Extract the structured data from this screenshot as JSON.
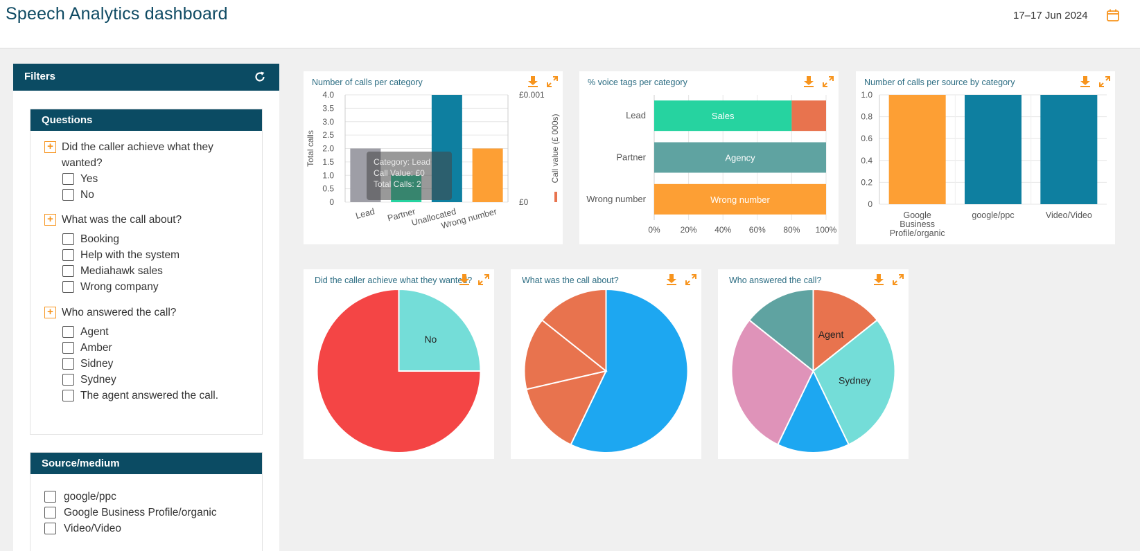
{
  "header": {
    "title": "Speech Analytics dashboard",
    "date_range": "17–17 Jun 2024"
  },
  "sidebar": {
    "title": "Filters",
    "questions_panel": {
      "title": "Questions",
      "questions": [
        {
          "text": "Did the caller achieve what they wanted?",
          "options": [
            "Yes",
            "No"
          ]
        },
        {
          "text": "What was the call about?",
          "options": [
            "Booking",
            "Help with the system",
            "Mediahawk sales",
            "Wrong company"
          ]
        },
        {
          "text": "Who answered the call?",
          "options": [
            "Agent",
            "Amber",
            "Sidney",
            "Sydney",
            "The agent answered the call."
          ]
        }
      ]
    },
    "source_panel": {
      "title": "Source/medium",
      "options": [
        "google/ppc",
        "Google Business Profile/organic",
        "Video/Video"
      ]
    }
  },
  "charts": {
    "calls_per_category": {
      "title": "Number of calls per category"
    },
    "voice_tags": {
      "title": "% voice tags per category"
    },
    "calls_per_source": {
      "title": "Number of calls per source by category"
    },
    "achieved": {
      "title": "Did the caller achieve what they wanted?"
    },
    "call_about": {
      "title": "What was the call about?"
    },
    "who_answered": {
      "title": "Who answered the call?"
    }
  },
  "chart_data": [
    {
      "id": "calls_per_category",
      "type": "bar",
      "title": "Number of calls per category",
      "categories": [
        "Lead",
        "Partner",
        "Unallocated",
        "Wrong number"
      ],
      "values": [
        2,
        1,
        4,
        2
      ],
      "colors": [
        "#9e9ea6",
        "#26d3a0",
        "#0e7fa0",
        "#fd9f34"
      ],
      "ylabel": "Total calls",
      "y2label": "Call value (£ 000s)",
      "ylim": [
        0,
        4
      ],
      "yticks": [
        "0",
        "0.5",
        "1.0",
        "1.5",
        "2.0",
        "2.5",
        "3.0",
        "3.5",
        "4.0"
      ],
      "y2ticks": [
        "£0.001",
        "£0"
      ],
      "tooltip": {
        "lines": [
          "Category: Lead",
          "Call Value: £0",
          "Total Calls: 2"
        ]
      }
    },
    {
      "id": "voice_tags",
      "type": "bar",
      "orientation": "horizontal-stacked",
      "title": "% voice tags per category",
      "categories": [
        "Lead",
        "Partner",
        "Wrong number"
      ],
      "series": [
        {
          "category": "Lead",
          "segments": [
            {
              "label": "Sales",
              "value": 80,
              "color": "#26d3a0"
            },
            {
              "label": "",
              "value": 20,
              "color": "#e8734e"
            }
          ]
        },
        {
          "category": "Partner",
          "segments": [
            {
              "label": "Agency",
              "value": 100,
              "color": "#5fa3a1"
            }
          ]
        },
        {
          "category": "Wrong number",
          "segments": [
            {
              "label": "Wrong number",
              "value": 100,
              "color": "#fd9f34"
            }
          ]
        }
      ],
      "xticks": [
        "0%",
        "20%",
        "40%",
        "60%",
        "80%",
        "100%"
      ]
    },
    {
      "id": "calls_per_source",
      "type": "bar",
      "title": "Number of calls per source by category",
      "categories": [
        "Google Business Profile/organic",
        "google/ppc",
        "Video/Video"
      ],
      "category_lines": [
        [
          "Google",
          "Business",
          "Profile/organic"
        ],
        [
          "google/ppc"
        ],
        [
          "Video/Video"
        ]
      ],
      "values": [
        1.0,
        1.0,
        1.0
      ],
      "colors": [
        "#fd9f34",
        "#0e7fa0",
        "#0e7fa0"
      ],
      "ylim": [
        0,
        1.0
      ],
      "yticks": [
        "0",
        "0.2",
        "0.4",
        "0.6",
        "0.8",
        "1.0"
      ]
    },
    {
      "id": "achieved",
      "type": "pie",
      "title": "Did the caller achieve what they wanted?",
      "slices": [
        {
          "label": "No",
          "value": 25,
          "color": "#74ddd8"
        },
        {
          "label": "",
          "value": 75,
          "color": "#f44545"
        }
      ]
    },
    {
      "id": "call_about",
      "type": "pie",
      "title": "What was the call about?",
      "slices": [
        {
          "label": "",
          "value": 57.1,
          "color": "#1da7f1"
        },
        {
          "label": "",
          "value": 14.3,
          "color": "#e8734e"
        },
        {
          "label": "",
          "value": 14.3,
          "color": "#e8734e"
        },
        {
          "label": "",
          "value": 14.3,
          "color": "#e8734e"
        }
      ]
    },
    {
      "id": "who_answered",
      "type": "pie",
      "title": "Who answered the call?",
      "slices": [
        {
          "label": "Agent",
          "value": 14.3,
          "color": "#e8734e"
        },
        {
          "label": "Sydney",
          "value": 28.6,
          "color": "#74ddd8"
        },
        {
          "label": "",
          "value": 14.3,
          "color": "#1da7f1"
        },
        {
          "label": "",
          "value": 28.6,
          "color": "#df93b9"
        },
        {
          "label": "",
          "value": 14.3,
          "color": "#5fa3a1"
        }
      ]
    }
  ]
}
